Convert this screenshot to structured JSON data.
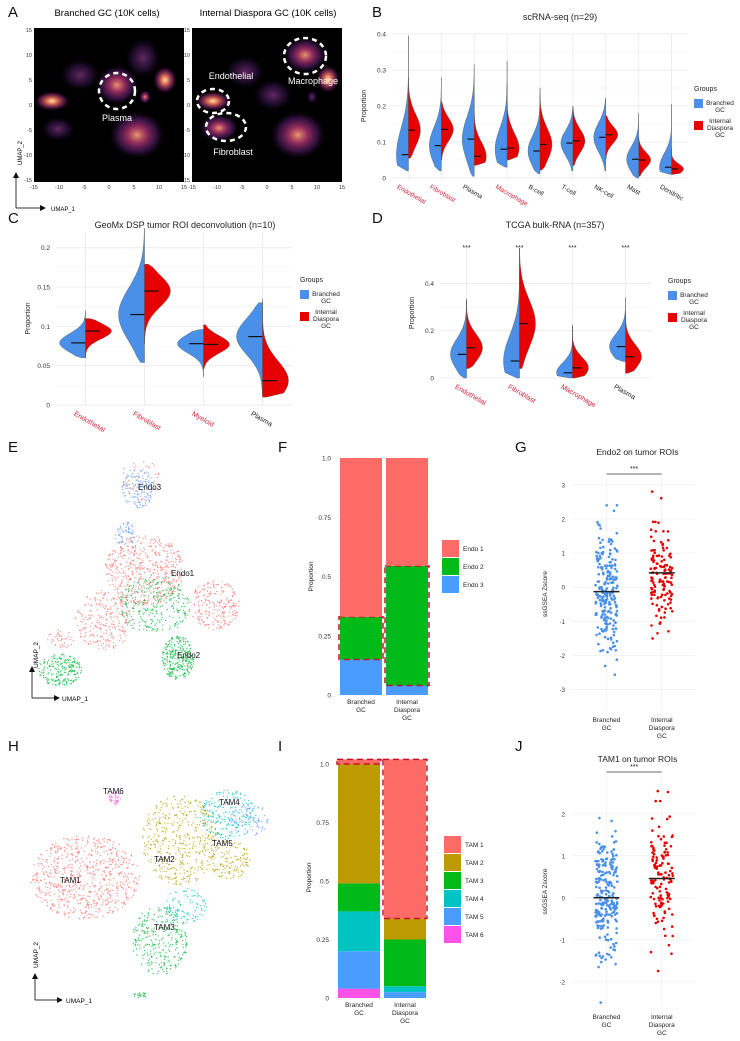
{
  "colors": {
    "branched": "#4a90e8",
    "internal": "#e60000",
    "highlight_label": "#cc1f3a",
    "grid": "#ececec",
    "dashed_box": "#c8102e"
  },
  "panels": {
    "A": {
      "label": "A",
      "plots": [
        {
          "title": "Branched GC (10K cells)",
          "annotations": [
            {
              "text": "Plasma"
            }
          ]
        },
        {
          "title": "Internal Diaspora GC (10K cells)",
          "annotations": [
            {
              "text": "Endothelial"
            },
            {
              "text": "Macrophage"
            },
            {
              "text": "Fibroblast"
            }
          ]
        }
      ],
      "xticks": [
        "-15",
        "-10",
        "-5",
        "0",
        "5",
        "10",
        "15"
      ],
      "yticks": [
        "15",
        "10",
        "5",
        "0",
        "-5",
        "-10",
        "-15"
      ],
      "xlabel": "UMAP_1",
      "ylabel": "UMAP_2"
    },
    "E": {
      "label": "E",
      "clusters": [
        {
          "text": "Endo3"
        },
        {
          "text": "Endo1"
        },
        {
          "text": "Endo2"
        }
      ],
      "xlabel": "UMAP_1",
      "ylabel": "UMAP_2"
    },
    "H": {
      "label": "H",
      "clusters": [
        {
          "text": "TAM6"
        },
        {
          "text": "TAM4"
        },
        {
          "text": "TAM5"
        },
        {
          "text": "TAM2"
        },
        {
          "text": "TAM1"
        },
        {
          "text": "TAM3"
        }
      ],
      "xlabel": "UMAP_1",
      "ylabel": "UMAP_2"
    }
  },
  "chart_data": [
    {
      "panel": "B",
      "type": "violin",
      "title": "scRNA-seq (n=29)",
      "ylabel": "Proportion",
      "ylim": [
        0,
        0.4
      ],
      "yticks": [
        "0",
        "0.1",
        "0.2",
        "0.3",
        "0.4"
      ],
      "categories": [
        "Endothelial",
        "Fibroblast",
        "Plasma",
        "Macrophage",
        "B-cell",
        "T-cell",
        "NK-cell",
        "Mast",
        "Dendritic"
      ],
      "highlighted": [
        true,
        true,
        false,
        true,
        false,
        false,
        false,
        false,
        false
      ],
      "legend": {
        "title": "Groups",
        "entries": [
          "Branched GC",
          "Internal Diaspora GC"
        ],
        "position": "right"
      },
      "series": [
        {
          "name": "Branched GC",
          "medians": [
            0.065,
            0.09,
            0.108,
            0.08,
            0.075,
            0.097,
            0.113,
            0.052,
            0.03
          ],
          "min": [
            0.02,
            0.02,
            0.005,
            0.03,
            0.012,
            0.02,
            0.02,
            0.0,
            0.01
          ],
          "max": [
            0.395,
            0.28,
            0.315,
            0.325,
            0.232,
            0.197,
            0.222,
            0.18,
            0.205
          ]
        },
        {
          "name": "Internal Diaspora GC",
          "medians": [
            0.133,
            0.135,
            0.06,
            0.083,
            0.093,
            0.103,
            0.12,
            0.05,
            0.025
          ],
          "min": [
            0.055,
            0.05,
            0.035,
            0.05,
            0.022,
            0.035,
            0.052,
            0.005,
            0.01
          ],
          "max": [
            0.28,
            0.212,
            0.235,
            0.262,
            0.25,
            0.2,
            0.173,
            0.115,
            0.082
          ]
        }
      ]
    },
    {
      "panel": "C",
      "type": "violin",
      "title": "GeoMx DSP tumor ROI deconvolution (n=10)",
      "ylabel": "Proportion",
      "ylim": [
        0,
        0.22
      ],
      "yticks": [
        "0",
        "0.05",
        "0.1",
        "0.15",
        "0.2"
      ],
      "categories": [
        "Endothelial",
        "Fibroblast",
        "Myeloid",
        "Plasma"
      ],
      "highlighted": [
        true,
        true,
        true,
        false
      ],
      "legend": {
        "title": "Groups",
        "entries": [
          "Branched GC",
          "Internal Diaspora GC"
        ],
        "position": "right"
      },
      "series": [
        {
          "name": "Branched GC",
          "medians": [
            0.079,
            0.115,
            0.078,
            0.087
          ],
          "min": [
            0.06,
            0.054,
            0.036,
            0.013
          ],
          "max": [
            0.12,
            0.225,
            0.096,
            0.13
          ]
        },
        {
          "name": "Internal Diaspora GC",
          "medians": [
            0.094,
            0.145,
            0.077,
            0.031
          ],
          "min": [
            0.06,
            0.078,
            0.046,
            0.01
          ],
          "max": [
            0.11,
            0.179,
            0.102,
            0.135
          ]
        }
      ]
    },
    {
      "panel": "D",
      "type": "violin",
      "title": "TCGA bulk-RNA (n=357)",
      "ylabel": "Proportion",
      "ylim": [
        0,
        0.55
      ],
      "yticks": [
        "0",
        "0.2",
        "0.4"
      ],
      "categories": [
        "Endothelial",
        "Fibroblast",
        "Macrophage",
        "Plasma"
      ],
      "highlighted": [
        true,
        true,
        true,
        false
      ],
      "significance": [
        "***",
        "***",
        "***",
        "***"
      ],
      "legend": {
        "title": "Groups",
        "entries": [
          "Branched GC",
          "Internal Diaspora GC"
        ],
        "position": "right"
      },
      "series": [
        {
          "name": "Branched GC",
          "medians": [
            0.1,
            0.072,
            0.022,
            0.133
          ],
          "min": [
            0.0,
            0.0,
            0.0,
            0.07
          ],
          "max": [
            0.335,
            0.55,
            0.22,
            0.34
          ]
        },
        {
          "name": "Internal Diaspora GC",
          "medians": [
            0.128,
            0.23,
            0.043,
            0.09
          ],
          "min": [
            0.04,
            0.04,
            0.0,
            0.02
          ],
          "max": [
            0.33,
            0.55,
            0.225,
            0.285
          ]
        }
      ]
    },
    {
      "panel": "F",
      "type": "bar",
      "stacked": true,
      "ylabel": "Proportion",
      "ylim": [
        0,
        1
      ],
      "yticks": [
        "0",
        "0.25",
        "0.5",
        "0.75",
        "1.0"
      ],
      "categories": [
        "Branched GC",
        "Internal Diaspora GC"
      ],
      "legend": {
        "entries": [
          "Endo 1",
          "Endo 2",
          "Endo 3"
        ],
        "position": "right"
      },
      "series": [
        {
          "name": "Endo 3",
          "color": "#4a9cff",
          "values": [
            0.15,
            0.04
          ]
        },
        {
          "name": "Endo 2",
          "color": "#00ba1a",
          "values": [
            0.18,
            0.505
          ]
        },
        {
          "name": "Endo 1",
          "color": "#fd6b66",
          "values": [
            0.67,
            0.455
          ]
        }
      ],
      "highlight_series": "Endo 2"
    },
    {
      "panel": "G",
      "type": "scatter",
      "title": "Endo2 on tumor ROIs",
      "ylabel": "ssGSEA Zscore",
      "ylim": [
        -3.6,
        3.2
      ],
      "yticks": [
        "-3",
        "-2",
        "-1",
        "0",
        "1",
        "2",
        "3"
      ],
      "categories": [
        "Branched GC",
        "Internal Diaspora GC"
      ],
      "significance": "***",
      "series": [
        {
          "name": "Branched GC",
          "mean": -0.13,
          "range": [
            -3.5,
            2.4
          ],
          "n": 230
        },
        {
          "name": "Internal Diaspora GC",
          "mean": 0.42,
          "range": [
            -1.5,
            2.8
          ],
          "n": 130
        }
      ]
    },
    {
      "panel": "I",
      "type": "bar",
      "stacked": true,
      "ylabel": "Proportion",
      "ylim": [
        0,
        1.03
      ],
      "yticks": [
        "0",
        "0.25",
        "0.5",
        "0.75",
        "1.0"
      ],
      "categories": [
        "Branched GC",
        "Internal Diaspora GC"
      ],
      "legend": {
        "entries": [
          "TAM 1",
          "TAM 2",
          "TAM 3",
          "TAM 4",
          "TAM 5",
          "TAM 6"
        ],
        "position": "right"
      },
      "series": [
        {
          "name": "TAM 6",
          "color": "#fc52e8",
          "values": [
            0.04,
            0.0
          ]
        },
        {
          "name": "TAM 5",
          "color": "#4a9cff",
          "values": [
            0.16,
            0.025
          ]
        },
        {
          "name": "TAM 4",
          "color": "#00c4c4",
          "values": [
            0.17,
            0.025
          ]
        },
        {
          "name": "TAM 3",
          "color": "#00ba1a",
          "values": [
            0.12,
            0.2
          ]
        },
        {
          "name": "TAM 2",
          "color": "#bd9a00",
          "values": [
            0.51,
            0.09
          ]
        },
        {
          "name": "TAM 1",
          "color": "#fd6b66",
          "values": [
            0.02,
            0.68
          ]
        }
      ],
      "highlight_series": "TAM 1"
    },
    {
      "panel": "J",
      "type": "scatter",
      "title": "TAM1 on tumor ROIs",
      "ylabel": "ssGSEA Zscore",
      "ylim": [
        -2.6,
        2.9
      ],
      "yticks": [
        "-2",
        "-1",
        "0",
        "1",
        "2"
      ],
      "categories": [
        "Branched GC",
        "Internal Diaspora GC"
      ],
      "significance": "***",
      "series": [
        {
          "name": "Branched GC",
          "mean": 0.0,
          "range": [
            -2.5,
            1.9
          ],
          "n": 230
        },
        {
          "name": "Internal Diaspora GC",
          "mean": 0.46,
          "range": [
            -1.8,
            2.75
          ],
          "n": 130
        }
      ]
    }
  ]
}
